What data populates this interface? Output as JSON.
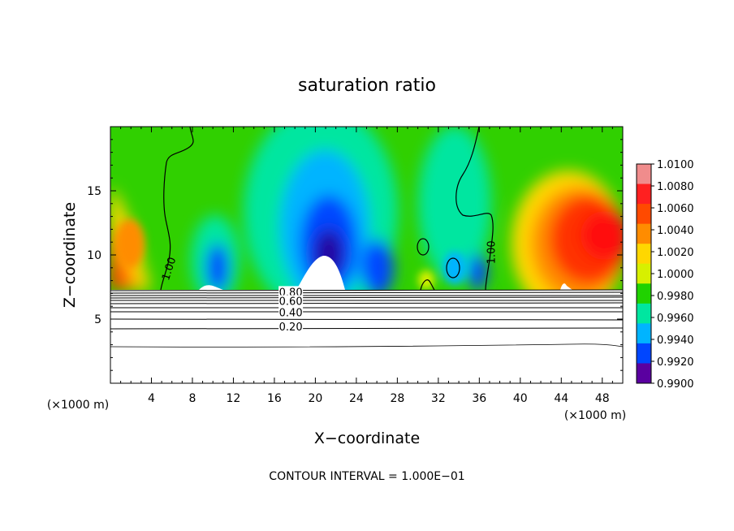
{
  "chart_data": {
    "type": "heatmap",
    "title": "saturation ratio",
    "xlabel": "X−coordinate",
    "ylabel": "Z−coordinate",
    "x_unit": "(×1000 m)",
    "x_unit_right": "(×1000 m)",
    "xlim": [
      0,
      50
    ],
    "ylim": [
      0,
      20
    ],
    "x_ticks": [
      "4",
      "8",
      "12",
      "16",
      "20",
      "24",
      "28",
      "32",
      "36",
      "40",
      "44",
      "48"
    ],
    "y_ticks": [
      "5",
      "10",
      "15"
    ],
    "x_tick_values": [
      4,
      8,
      12,
      16,
      20,
      24,
      28,
      32,
      36,
      40,
      44,
      48
    ],
    "y_tick_values": [
      5,
      10,
      15
    ],
    "colorbar": {
      "min": 0.99,
      "max": 1.01,
      "labels": [
        "1.0100",
        "1.0080",
        "1.0060",
        "1.0040",
        "1.0020",
        "1.0000",
        "0.9980",
        "0.9960",
        "0.9940",
        "0.9920",
        "0.9900"
      ],
      "values": [
        1.01,
        1.008,
        1.006,
        1.004,
        1.002,
        1.0,
        0.998,
        0.996,
        0.994,
        0.992,
        0.99
      ],
      "colors": [
        "#f08c8c",
        "#ff2020",
        "#ff4a00",
        "#ff8c00",
        "#ffd700",
        "#d7f000",
        "#20d200",
        "#00e6a0",
        "#00b4ff",
        "#0046ff",
        "#5a00a0"
      ]
    },
    "contour_labels": [
      {
        "text": "1.00",
        "x": 5.8,
        "z": 8.9,
        "angle": -72
      },
      {
        "text": "1.00",
        "x": 37.3,
        "z": 10.2,
        "angle": -90
      },
      {
        "text": "0.80",
        "x": 17.6,
        "z": 7.0,
        "angle": 0
      },
      {
        "text": "0.60",
        "x": 17.6,
        "z": 6.3,
        "angle": 0
      },
      {
        "text": "0.40",
        "x": 17.6,
        "z": 5.4,
        "angle": 0
      },
      {
        "text": "0.20",
        "x": 17.6,
        "z": 4.3,
        "angle": 0
      }
    ],
    "contour_interval_text": "CONTOUR INTERVAL = 1.000E−01",
    "grid": false,
    "legend": "colorbar-right"
  }
}
